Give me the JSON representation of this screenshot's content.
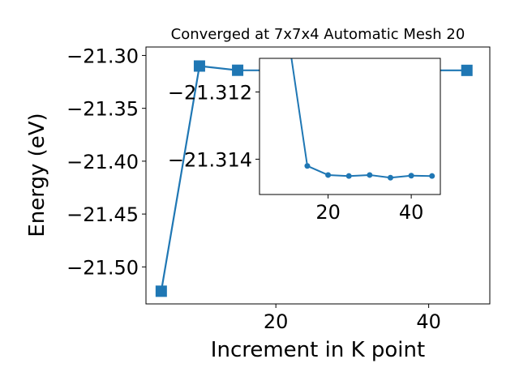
{
  "chart_data": [
    {
      "type": "line",
      "role": "main",
      "title": "Converged at 7x7x4 Automatic Mesh 20",
      "xlabel": "Increment in K point",
      "ylabel": "Energy (eV)",
      "marker": "square",
      "color": "#1f77b4",
      "xlim": [
        3,
        48
      ],
      "ylim": [
        -21.535,
        -21.292
      ],
      "xticks": [
        20,
        40
      ],
      "xtick_labels": [
        "20",
        "40"
      ],
      "yticks": [
        -21.3,
        -21.35,
        -21.4,
        -21.45,
        -21.5
      ],
      "ytick_labels": [
        "−21.30",
        "−21.35",
        "−21.40",
        "−21.45",
        "−21.50"
      ],
      "grid": false,
      "series": [
        {
          "x": [
            5,
            10,
            15,
            20,
            25,
            30,
            35,
            40,
            45
          ],
          "y": [
            -21.523,
            -21.31,
            -21.314,
            -21.3141,
            -21.3141,
            -21.3141,
            -21.3142,
            -21.3141,
            -21.3141
          ]
        }
      ]
    },
    {
      "type": "line",
      "role": "inset",
      "marker": "circle",
      "color": "#1f77b4",
      "xlim": [
        3.5,
        47
      ],
      "ylim": [
        -21.31505,
        -21.311
      ],
      "xticks": [
        20,
        40
      ],
      "xtick_labels": [
        "20",
        "40"
      ],
      "yticks": [
        -21.314,
        -21.312
      ],
      "ytick_labels": [
        "−21.314",
        "−21.312"
      ],
      "grid": false,
      "series": [
        {
          "x": [
            10,
            15,
            20,
            25,
            30,
            35,
            40,
            45
          ],
          "y": [
            -21.31,
            -21.3142,
            -21.31447,
            -21.3145,
            -21.31447,
            -21.31455,
            -21.31449,
            -21.3145
          ]
        }
      ]
    }
  ]
}
